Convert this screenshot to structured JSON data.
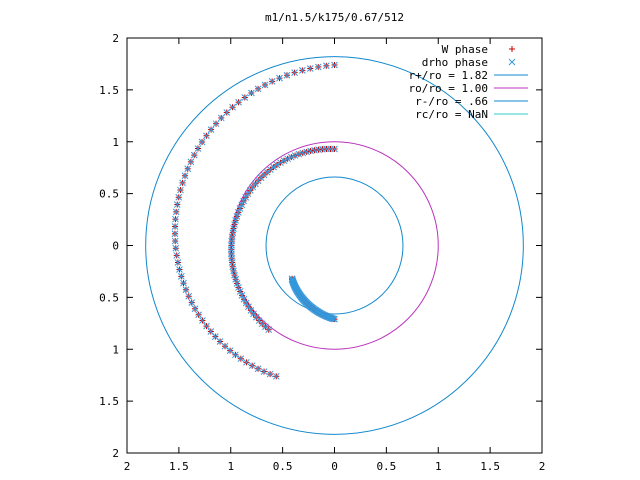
{
  "chart_data": {
    "type": "scatter",
    "title": "m1/n1.5/k175/0.67/512",
    "xlim": [
      -2,
      2
    ],
    "ylim": [
      -2,
      2
    ],
    "x_ticks": [
      -2,
      -1.5,
      -1,
      -0.5,
      0,
      0.5,
      1,
      1.5,
      2
    ],
    "y_ticks": [
      -2,
      -1.5,
      -1,
      -0.5,
      0,
      0.5,
      1,
      1.5,
      2
    ],
    "x_tick_labels": [
      "2",
      "1.5",
      "1",
      "0.5",
      "0",
      "0.5",
      "1",
      "1.5",
      "2"
    ],
    "y_tick_labels": [
      "2",
      "1.5",
      "1",
      "0.5",
      "0",
      "0.5",
      "1",
      "1.5",
      "2"
    ],
    "grid": false,
    "legend_position": "top-right",
    "series": [
      {
        "name": "W phase",
        "kind": "points",
        "marker": "plus",
        "color": "#cc0000",
        "arms": [
          {
            "r_start": 1.74,
            "r_end": 1.38,
            "theta_start": 90,
            "theta_end": 246
          },
          {
            "r_start": 0.93,
            "r_end": 1.03,
            "theta_start": 90,
            "theta_end": 232
          },
          {
            "r_start": 0.71,
            "r_end": 0.52,
            "theta_start": 270,
            "theta_end": 218
          }
        ]
      },
      {
        "name": "drho phase",
        "kind": "points",
        "marker": "cross",
        "color": "#3399dd",
        "arms": [
          {
            "r_start": 1.74,
            "r_end": 1.38,
            "theta_start": 90,
            "theta_end": 246
          },
          {
            "r_start": 0.93,
            "r_end": 1.03,
            "theta_start": 90,
            "theta_end": 232
          },
          {
            "r_start": 0.71,
            "r_end": 0.52,
            "theta_start": 270,
            "theta_end": 218
          }
        ]
      },
      {
        "name": "r+/ro = 1.82",
        "kind": "circle",
        "radius": 1.82,
        "color": "#1188cc"
      },
      {
        "name": "ro/ro = 1.00",
        "kind": "circle",
        "radius": 1.0,
        "color": "#bb33bb"
      },
      {
        "name": "r-/ro = .66",
        "kind": "circle",
        "radius": 0.66,
        "color": "#1188cc"
      },
      {
        "name": "rc/ro = NaN",
        "kind": "circle",
        "radius": null,
        "color": "#33cccc"
      }
    ]
  }
}
